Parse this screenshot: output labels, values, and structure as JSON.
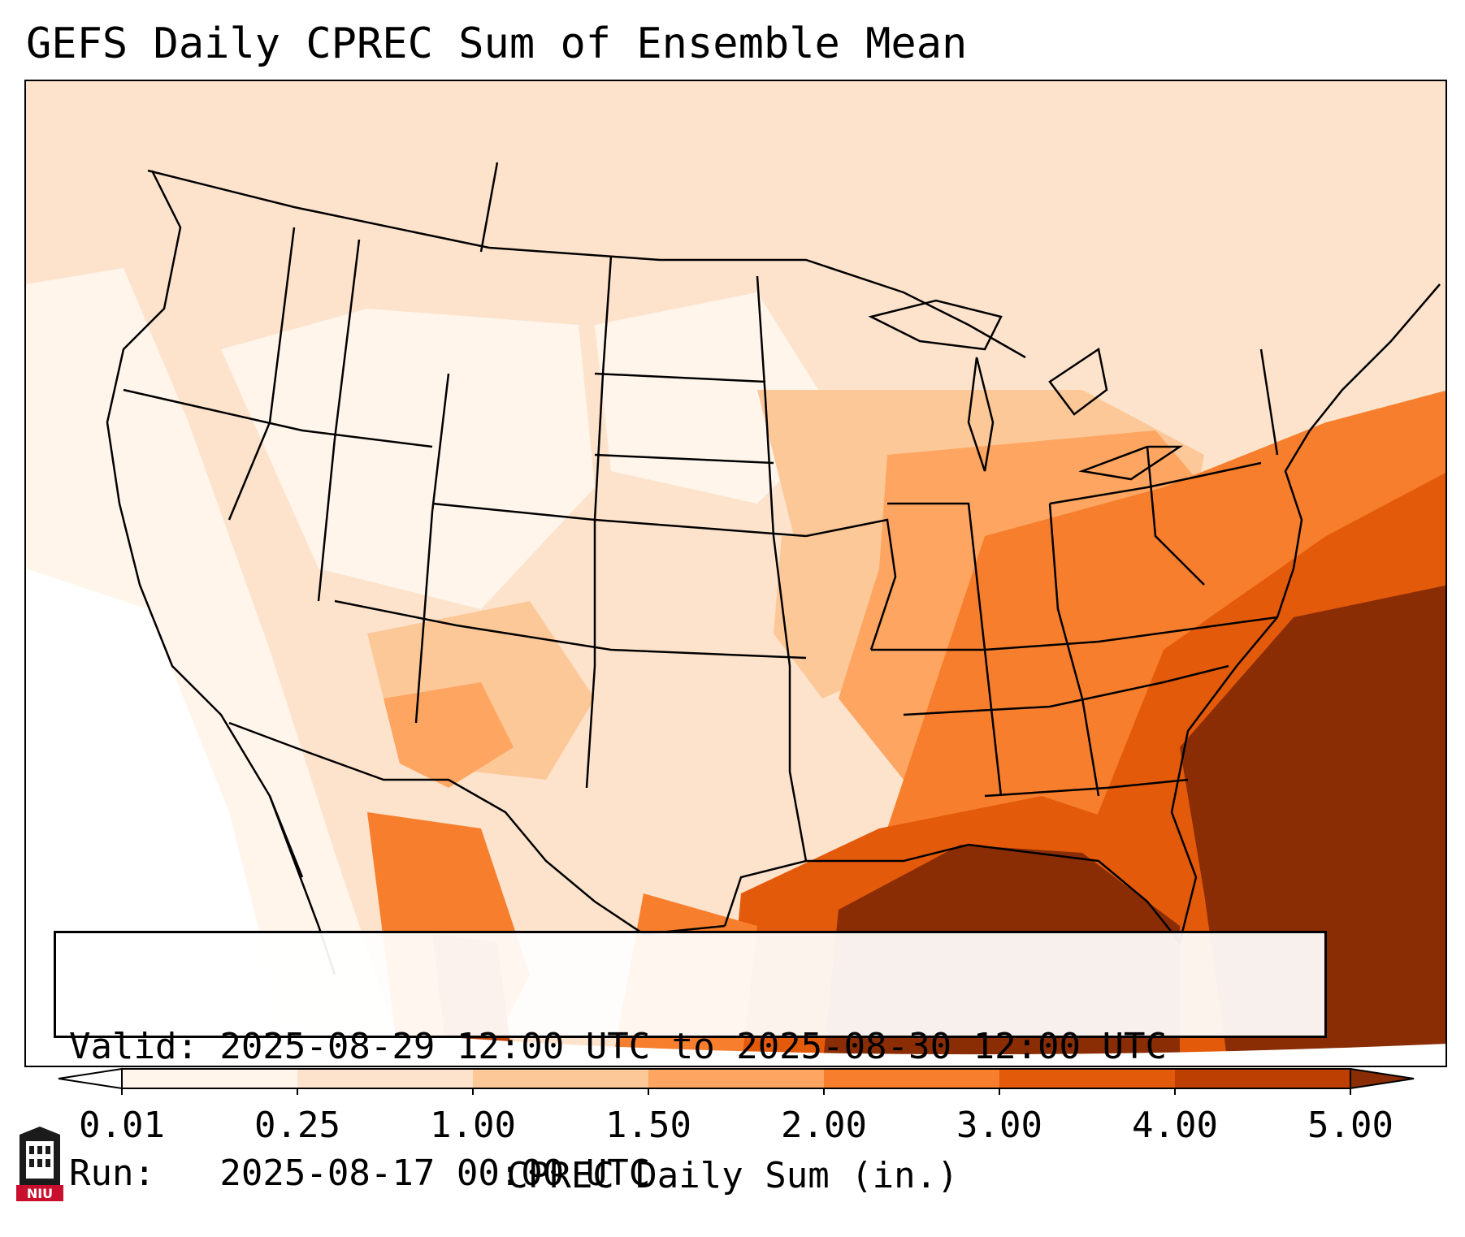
{
  "title": "GEFS Daily CPREC Sum of Ensemble Mean",
  "info": {
    "valid_line": "Valid: 2025-08-29 12:00 UTC to 2025-08-30 12:00 UTC",
    "run_line": "Run:   2025-08-17 00:00 UTC"
  },
  "colorbar": {
    "label": "CPREC Daily Sum (in.)",
    "ticks": [
      "0.01",
      "0.25",
      "1.00",
      "1.50",
      "2.00",
      "3.00",
      "4.00",
      "5.00"
    ],
    "bins": [
      {
        "from": "0.01",
        "to": "0.25",
        "color": "#fff5eb"
      },
      {
        "from": "0.25",
        "to": "1.00",
        "color": "#fde3cc"
      },
      {
        "from": "1.00",
        "to": "1.50",
        "color": "#fdc898"
      },
      {
        "from": "1.50",
        "to": "2.00",
        "color": "#fda561"
      },
      {
        "from": "2.00",
        "to": "3.00",
        "color": "#f67e2c"
      },
      {
        "from": "3.00",
        "to": "4.00",
        "color": "#e35a0a"
      },
      {
        "from": "4.00",
        "to": "5.00",
        "color": "#bd3f02"
      }
    ],
    "under_color": "#ffffff",
    "over_color": "#8a2d04"
  },
  "logo": {
    "text": "NIU",
    "color": "#c8102e"
  },
  "map": {
    "projection": "Lambert Conformal (CONUS)",
    "coastline_color": "#000000",
    "borders": "state and country lines"
  }
}
